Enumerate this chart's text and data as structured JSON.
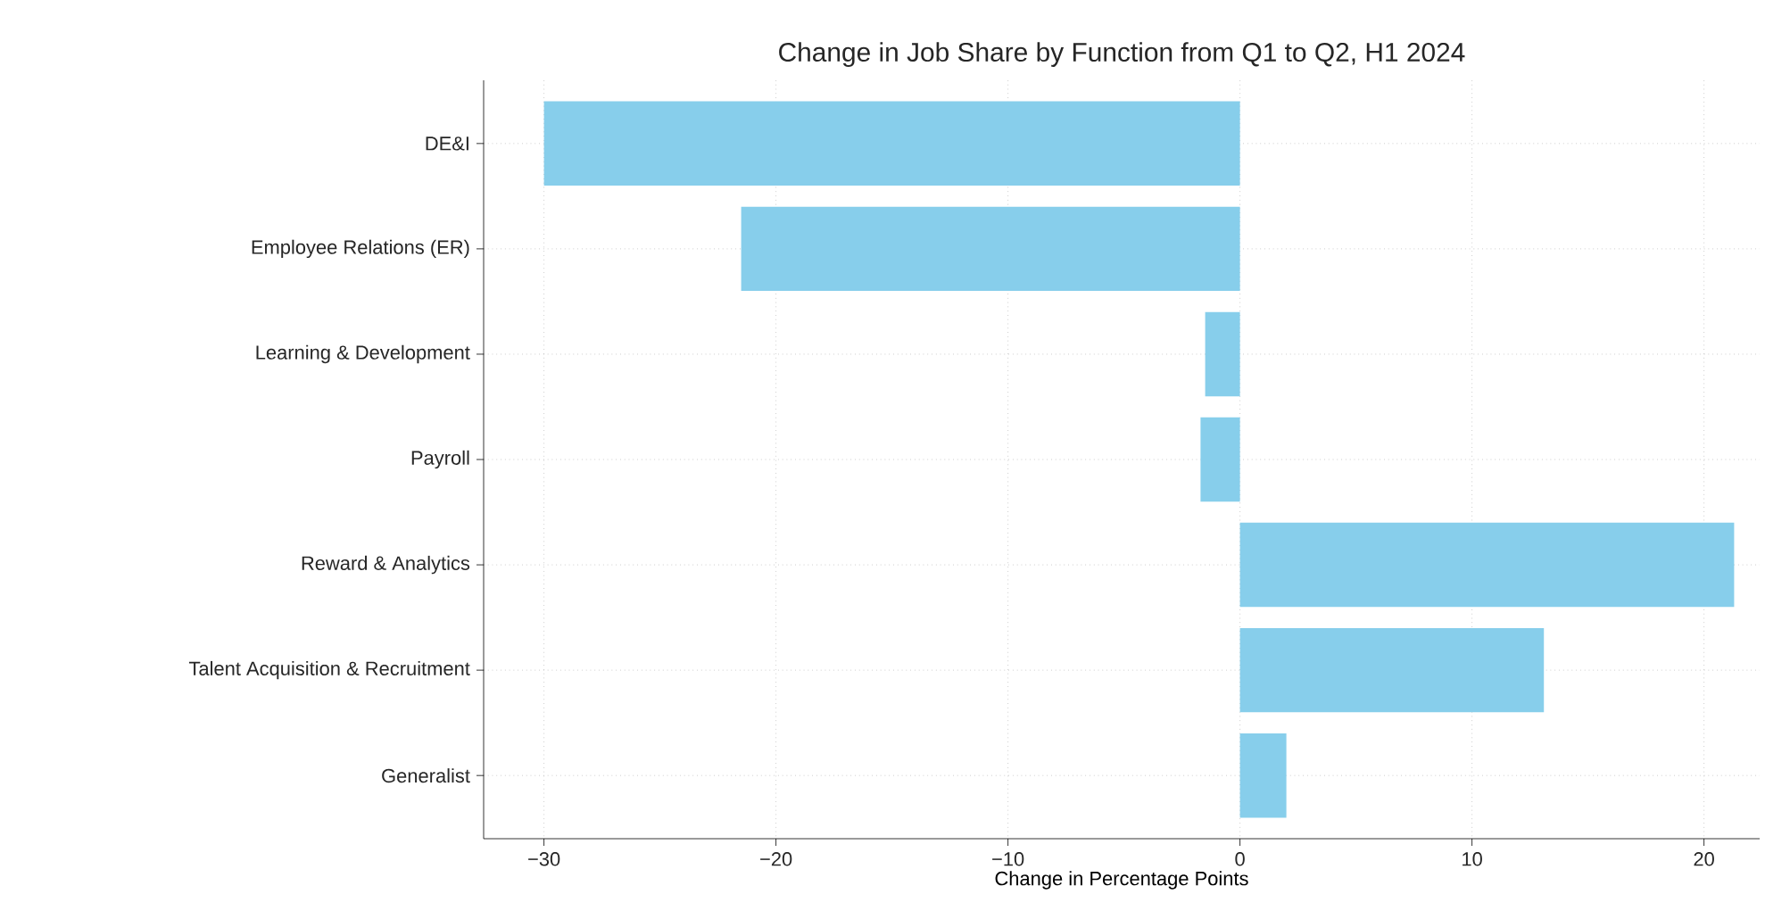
{
  "chart_data": {
    "type": "bar",
    "orientation": "horizontal",
    "title": "Change in Job Share by Function from Q1 to Q2, H1 2024",
    "xlabel": "Change in Percentage Points",
    "categories": [
      "DE&I",
      "Employee Relations (ER)",
      "Learning & Development",
      "Payroll",
      "Reward & Analytics",
      "Talent Acquisition & Recruitment",
      "Generalist"
    ],
    "values": [
      -30.0,
      -21.5,
      -1.5,
      -1.7,
      21.3,
      13.1,
      2.0
    ],
    "color": "#87ceeb",
    "xlim": [
      -32.6,
      22.4
    ],
    "xticks": [
      {
        "value": -30,
        "label": "−30"
      },
      {
        "value": -20,
        "label": "−20"
      },
      {
        "value": -10,
        "label": "−10"
      },
      0,
      10,
      20
    ],
    "grid": true
  }
}
